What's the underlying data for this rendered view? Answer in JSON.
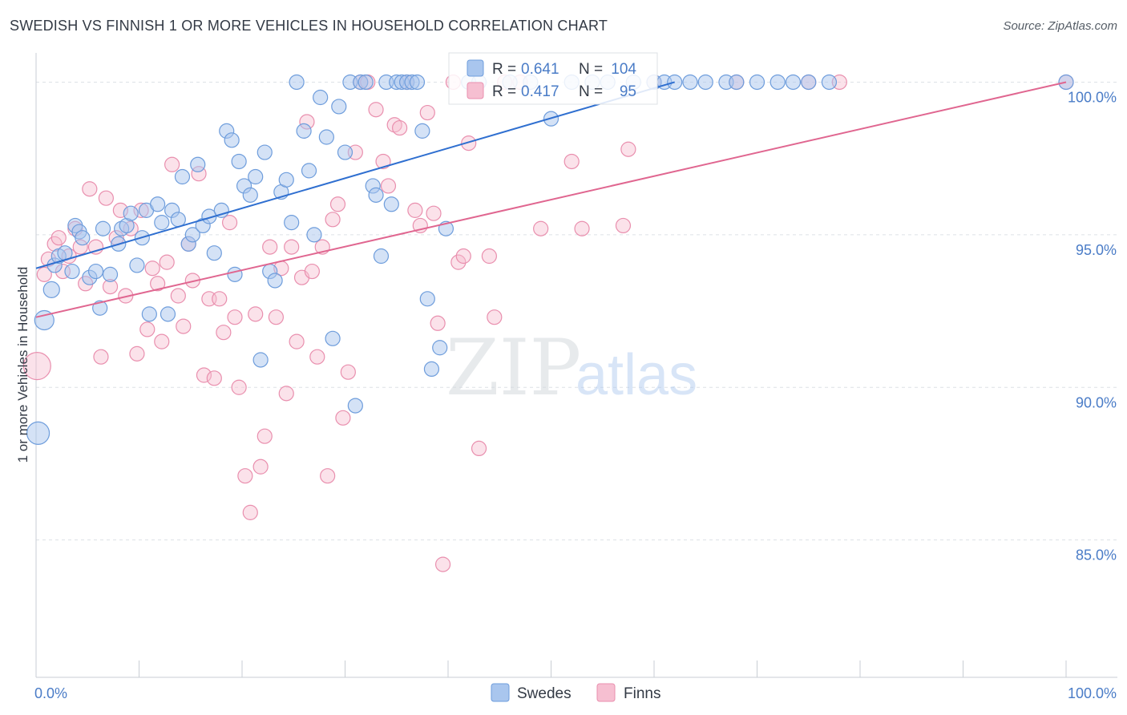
{
  "title": "SWEDISH VS FINNISH 1 OR MORE VEHICLES IN HOUSEHOLD CORRELATION CHART",
  "source": "Source: ZipAtlas.com",
  "watermark": {
    "zip": "ZIP",
    "atlas": "atlas"
  },
  "colors": {
    "swedes_fill": "#a9c6ee",
    "swedes_stroke": "#6e9ddc",
    "swedes_line": "#2f6fd0",
    "finns_fill": "#f6bfd1",
    "finns_stroke": "#e98fae",
    "finns_line": "#e06690",
    "tick": "#4a7cc7",
    "grid": "#dde1e6",
    "text": "#333a45"
  },
  "stats": [
    {
      "series": "Swedes",
      "r_label": "R =",
      "r_value": "0.641",
      "n_label": "N =",
      "n_value": "104"
    },
    {
      "series": "Finns",
      "r_label": "R =",
      "r_value": "0.417",
      "n_label": "N =",
      "n_value": "95"
    }
  ],
  "chart_data": {
    "type": "scatter",
    "title": "SWEDISH VS FINNISH 1 OR MORE VEHICLES IN HOUSEHOLD CORRELATION CHART",
    "xlabel": "",
    "ylabel": "1 or more Vehicles in Household",
    "xlim": [
      0,
      100
    ],
    "ylim": [
      80.5,
      100.8
    ],
    "x_tick_labels": [
      {
        "value": 0,
        "label": "0.0%"
      },
      {
        "value": 100,
        "label": "100.0%"
      }
    ],
    "y_tick_labels": [
      {
        "value": 85,
        "label": "85.0%"
      },
      {
        "value": 90,
        "label": "90.0%"
      },
      {
        "value": 95,
        "label": "95.0%"
      },
      {
        "value": 100,
        "label": "100.0%"
      }
    ],
    "grid": "horizontal",
    "legend": "bottom-center",
    "series": [
      {
        "name": "Swedes",
        "trend": {
          "x0": 0,
          "y0": 93.9,
          "x1": 62,
          "y1": 100
        },
        "points": [
          [
            0.2,
            88.5
          ],
          [
            0.8,
            92.2
          ],
          [
            1.5,
            93.2
          ],
          [
            1.8,
            94.0
          ],
          [
            2.2,
            94.3
          ],
          [
            2.8,
            94.4
          ],
          [
            3.5,
            93.8
          ],
          [
            3.8,
            95.3
          ],
          [
            4.2,
            95.1
          ],
          [
            4.5,
            94.9
          ],
          [
            5.2,
            93.6
          ],
          [
            5.8,
            93.8
          ],
          [
            6.2,
            92.6
          ],
          [
            6.5,
            95.2
          ],
          [
            7.2,
            93.7
          ],
          [
            8.0,
            94.7
          ],
          [
            8.3,
            95.2
          ],
          [
            8.8,
            95.3
          ],
          [
            9.2,
            95.7
          ],
          [
            9.8,
            94.0
          ],
          [
            10.3,
            94.9
          ],
          [
            10.7,
            95.8
          ],
          [
            11.0,
            92.4
          ],
          [
            11.8,
            96.0
          ],
          [
            12.2,
            95.4
          ],
          [
            12.8,
            92.4
          ],
          [
            13.2,
            95.8
          ],
          [
            13.8,
            95.5
          ],
          [
            14.2,
            96.9
          ],
          [
            14.8,
            94.7
          ],
          [
            15.2,
            95.0
          ],
          [
            15.7,
            97.3
          ],
          [
            16.2,
            95.3
          ],
          [
            16.8,
            95.6
          ],
          [
            17.3,
            94.4
          ],
          [
            18.0,
            95.8
          ],
          [
            18.5,
            98.4
          ],
          [
            19.0,
            98.1
          ],
          [
            19.3,
            93.7
          ],
          [
            19.7,
            97.4
          ],
          [
            20.2,
            96.6
          ],
          [
            20.8,
            96.3
          ],
          [
            21.3,
            96.9
          ],
          [
            21.8,
            90.9
          ],
          [
            22.2,
            97.7
          ],
          [
            22.7,
            93.8
          ],
          [
            23.2,
            93.5
          ],
          [
            23.8,
            96.4
          ],
          [
            24.3,
            96.8
          ],
          [
            24.8,
            95.4
          ],
          [
            25.3,
            100
          ],
          [
            26.0,
            98.4
          ],
          [
            26.5,
            97.1
          ],
          [
            27.0,
            95.0
          ],
          [
            27.6,
            99.5
          ],
          [
            28.2,
            98.2
          ],
          [
            28.8,
            91.6
          ],
          [
            29.4,
            99.2
          ],
          [
            30.0,
            97.7
          ],
          [
            30.5,
            100
          ],
          [
            31.0,
            89.4
          ],
          [
            31.5,
            100
          ],
          [
            32.0,
            100
          ],
          [
            32.7,
            96.6
          ],
          [
            33.0,
            96.3
          ],
          [
            33.5,
            94.3
          ],
          [
            34.0,
            100
          ],
          [
            34.5,
            96.0
          ],
          [
            35.0,
            100
          ],
          [
            35.5,
            100
          ],
          [
            36.0,
            100
          ],
          [
            36.5,
            100
          ],
          [
            37.0,
            100
          ],
          [
            37.5,
            98.4
          ],
          [
            38.0,
            92.9
          ],
          [
            38.4,
            90.6
          ],
          [
            39.2,
            91.3
          ],
          [
            39.8,
            95.2
          ],
          [
            42.0,
            100
          ],
          [
            43.0,
            100
          ],
          [
            46.0,
            100
          ],
          [
            48.0,
            100
          ],
          [
            50.0,
            98.8
          ],
          [
            52.0,
            100
          ],
          [
            54.0,
            100
          ],
          [
            55.5,
            100
          ],
          [
            58.0,
            100
          ],
          [
            60.0,
            100
          ],
          [
            61.0,
            100
          ],
          [
            62.0,
            100
          ],
          [
            63.5,
            100
          ],
          [
            65.0,
            100
          ],
          [
            67.0,
            100
          ],
          [
            68.0,
            100
          ],
          [
            70.0,
            100
          ],
          [
            72.0,
            100
          ],
          [
            73.5,
            100
          ],
          [
            75.0,
            100
          ],
          [
            77.0,
            100
          ],
          [
            100,
            100
          ]
        ]
      },
      {
        "name": "Finns",
        "trend": {
          "x0": 0,
          "y0": 92.3,
          "x1": 100,
          "y1": 100
        },
        "points": [
          [
            0.1,
            90.7
          ],
          [
            0.8,
            93.7
          ],
          [
            1.2,
            94.2
          ],
          [
            1.8,
            94.7
          ],
          [
            2.2,
            94.9
          ],
          [
            2.6,
            93.8
          ],
          [
            3.2,
            94.3
          ],
          [
            3.8,
            95.2
          ],
          [
            4.3,
            94.6
          ],
          [
            4.8,
            93.4
          ],
          [
            5.2,
            96.5
          ],
          [
            5.8,
            94.6
          ],
          [
            6.3,
            91.0
          ],
          [
            6.8,
            96.2
          ],
          [
            7.2,
            93.3
          ],
          [
            7.8,
            94.9
          ],
          [
            8.2,
            95.8
          ],
          [
            8.7,
            93.0
          ],
          [
            9.2,
            95.2
          ],
          [
            9.8,
            91.1
          ],
          [
            10.2,
            95.8
          ],
          [
            10.8,
            91.9
          ],
          [
            11.3,
            93.9
          ],
          [
            11.8,
            93.4
          ],
          [
            12.2,
            91.5
          ],
          [
            12.7,
            94.1
          ],
          [
            13.2,
            97.3
          ],
          [
            13.8,
            93.0
          ],
          [
            14.3,
            92.0
          ],
          [
            14.8,
            94.7
          ],
          [
            15.2,
            93.5
          ],
          [
            15.8,
            97.0
          ],
          [
            16.3,
            90.4
          ],
          [
            16.8,
            92.9
          ],
          [
            17.3,
            90.3
          ],
          [
            17.8,
            92.9
          ],
          [
            18.2,
            91.8
          ],
          [
            18.8,
            95.4
          ],
          [
            19.3,
            92.3
          ],
          [
            19.7,
            90.0
          ],
          [
            20.3,
            87.1
          ],
          [
            20.8,
            85.9
          ],
          [
            21.3,
            92.4
          ],
          [
            21.8,
            87.4
          ],
          [
            22.2,
            88.4
          ],
          [
            22.7,
            94.6
          ],
          [
            23.3,
            92.3
          ],
          [
            23.8,
            93.9
          ],
          [
            24.3,
            89.8
          ],
          [
            24.8,
            94.6
          ],
          [
            25.3,
            91.5
          ],
          [
            25.8,
            93.6
          ],
          [
            26.3,
            98.7
          ],
          [
            26.8,
            93.8
          ],
          [
            27.3,
            91.0
          ],
          [
            27.8,
            94.6
          ],
          [
            28.3,
            87.1
          ],
          [
            28.8,
            95.5
          ],
          [
            29.3,
            96.0
          ],
          [
            29.8,
            89.0
          ],
          [
            30.3,
            90.5
          ],
          [
            31.0,
            97.7
          ],
          [
            31.5,
            100
          ],
          [
            32.2,
            100
          ],
          [
            33.0,
            99.1
          ],
          [
            33.7,
            97.4
          ],
          [
            34.2,
            96.6
          ],
          [
            34.8,
            98.6
          ],
          [
            35.3,
            98.5
          ],
          [
            36.0,
            100
          ],
          [
            36.8,
            95.8
          ],
          [
            37.3,
            95.3
          ],
          [
            38.0,
            99.0
          ],
          [
            38.6,
            95.7
          ],
          [
            39.0,
            92.1
          ],
          [
            39.5,
            84.2
          ],
          [
            40.5,
            100
          ],
          [
            41.0,
            94.1
          ],
          [
            41.5,
            94.3
          ],
          [
            42.0,
            98.0
          ],
          [
            43.0,
            88.0
          ],
          [
            44.0,
            94.3
          ],
          [
            44.5,
            92.3
          ],
          [
            45.5,
            100
          ],
          [
            47.0,
            100
          ],
          [
            49.0,
            95.2
          ],
          [
            52.0,
            97.4
          ],
          [
            53.0,
            95.2
          ],
          [
            57.0,
            95.3
          ],
          [
            57.5,
            97.8
          ],
          [
            60.0,
            100
          ],
          [
            68.0,
            100
          ],
          [
            75.0,
            100
          ],
          [
            78.0,
            100
          ],
          [
            100,
            100
          ]
        ]
      }
    ]
  },
  "legend": {
    "items": [
      {
        "label": "Swedes"
      },
      {
        "label": "Finns"
      }
    ]
  }
}
